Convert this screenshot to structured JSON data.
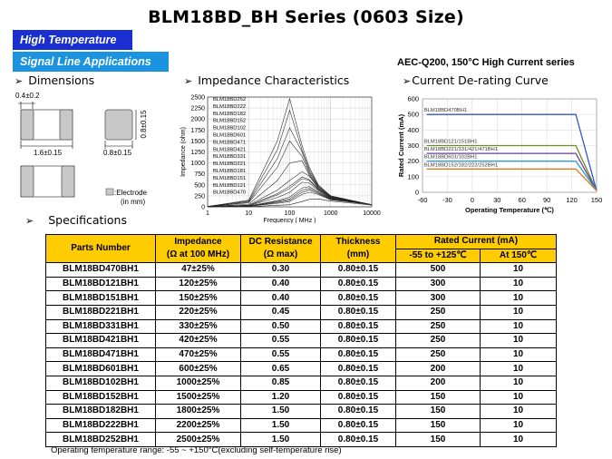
{
  "title": "BLM18BD_BH Series (0603 Size)",
  "tags": [
    "High Temperature",
    "Signal Line Applications"
  ],
  "aec_note": "AEC-Q200, 150°C High Current series",
  "sections": {
    "dimensions": "Dimensions",
    "impedance": "Impedance Characteristics",
    "derating": "Current De-rating Curve",
    "specifications": "Specifications"
  },
  "bullet": "➢",
  "dimensions": {
    "dim_a": "0.4±0.2",
    "dim_b": "1.6±0.15",
    "dim_c": "0.8±0.15",
    "dim_d": "0.8±0.15",
    "electrode_line1": ":Electrode",
    "electrode_line2": "(in mm)"
  },
  "chart_data": [
    {
      "type": "line",
      "title": "",
      "xlabel": "Frequency ( MHz )",
      "ylabel": "Impedance (ohm)",
      "xscale": "log",
      "xlim": [
        1,
        10000
      ],
      "ylim": [
        0,
        2500
      ],
      "xticks": [
        "1",
        "10",
        "100",
        "1000",
        "10000"
      ],
      "yticks": [
        "0",
        "250",
        "500",
        "750",
        "1000",
        "1250",
        "1500",
        "1750",
        "2000",
        "2250",
        "2500"
      ],
      "grid": true,
      "legend_position": "top-left",
      "series": [
        {
          "name": "BLM18BD252",
          "x": [
            1,
            10,
            50,
            100,
            200,
            300,
            500,
            1000,
            10000
          ],
          "y": [
            10,
            150,
            1500,
            2460,
            1400,
            900,
            500,
            250,
            50
          ]
        },
        {
          "name": "BLM18BD222",
          "x": [
            1,
            10,
            50,
            100,
            200,
            300,
            500,
            1000,
            10000
          ],
          "y": [
            10,
            130,
            1300,
            2200,
            1300,
            850,
            480,
            240,
            50
          ]
        },
        {
          "name": "BLM18BD182",
          "x": [
            1,
            10,
            50,
            100,
            200,
            300,
            500,
            1000,
            10000
          ],
          "y": [
            8,
            110,
            1100,
            1800,
            1250,
            800,
            460,
            240,
            50
          ]
        },
        {
          "name": "BLM18BD152",
          "x": [
            1,
            10,
            50,
            100,
            200,
            300,
            500,
            1000,
            10000
          ],
          "y": [
            8,
            90,
            900,
            1500,
            1150,
            760,
            440,
            230,
            50
          ]
        },
        {
          "name": "BLM18BD102",
          "x": [
            1,
            10,
            50,
            100,
            200,
            300,
            500,
            1000,
            10000
          ],
          "y": [
            6,
            60,
            600,
            1000,
            1050,
            720,
            420,
            220,
            50
          ]
        },
        {
          "name": "BLM18BD601",
          "x": [
            1,
            10,
            50,
            100,
            200,
            300,
            500,
            1000,
            10000
          ],
          "y": [
            5,
            40,
            380,
            600,
            800,
            700,
            420,
            220,
            50
          ]
        },
        {
          "name": "BLM18BD471",
          "x": [
            1,
            10,
            50,
            100,
            200,
            300,
            500,
            1000,
            10000
          ],
          "y": [
            4,
            30,
            300,
            470,
            680,
            620,
            400,
            210,
            50
          ]
        },
        {
          "name": "BLM18BD421",
          "x": [
            1,
            10,
            50,
            100,
            200,
            300,
            500,
            1000,
            10000
          ],
          "y": [
            4,
            28,
            270,
            420,
            640,
            600,
            390,
            210,
            50
          ]
        },
        {
          "name": "BLM18BD331",
          "x": [
            1,
            10,
            50,
            100,
            200,
            300,
            500,
            1000,
            10000
          ],
          "y": [
            3,
            22,
            210,
            330,
            560,
            540,
            370,
            200,
            50
          ]
        },
        {
          "name": "BLM18BD221",
          "x": [
            1,
            10,
            50,
            100,
            200,
            300,
            500,
            1000,
            10000
          ],
          "y": [
            3,
            16,
            140,
            220,
            430,
            460,
            340,
            190,
            50
          ]
        },
        {
          "name": "BLM18BD181",
          "x": [
            1,
            10,
            50,
            100,
            200,
            300,
            500,
            1000,
            10000
          ],
          "y": [
            2,
            14,
            120,
            180,
            380,
            420,
            320,
            180,
            50
          ]
        },
        {
          "name": "BLM18BD151",
          "x": [
            1,
            10,
            50,
            100,
            200,
            300,
            500,
            1000,
            10000
          ],
          "y": [
            2,
            12,
            100,
            150,
            330,
            380,
            300,
            170,
            50
          ]
        },
        {
          "name": "BLM18BD121",
          "x": [
            1,
            10,
            50,
            100,
            200,
            300,
            500,
            1000,
            10000
          ],
          "y": [
            2,
            10,
            80,
            120,
            280,
            330,
            280,
            160,
            50
          ]
        },
        {
          "name": "BLM18BD470",
          "x": [
            1,
            10,
            50,
            100,
            200,
            300,
            500,
            1000,
            10000
          ],
          "y": [
            1,
            5,
            35,
            47,
            120,
            170,
            180,
            130,
            40
          ]
        }
      ]
    },
    {
      "type": "line",
      "title": "",
      "xlabel": "Operating Temperature (℃)",
      "ylabel": "Rated Current (mA)",
      "xlim": [
        -60,
        150
      ],
      "ylim": [
        0,
        600
      ],
      "xticks": [
        "-60",
        "-30",
        "0",
        "30",
        "60",
        "90",
        "120",
        "150"
      ],
      "yticks": [
        "0",
        "100",
        "200",
        "300",
        "400",
        "500",
        "600"
      ],
      "grid": true,
      "series": [
        {
          "name": "BLM18BD470BH1",
          "color": "#3355cc",
          "x": [
            -55,
            125,
            150
          ],
          "y": [
            500,
            500,
            10
          ]
        },
        {
          "name": "BLM18BD121/151BH1",
          "color": "#6b8e23",
          "x": [
            -55,
            125,
            150
          ],
          "y": [
            300,
            300,
            10
          ]
        },
        {
          "name": "BLM18BD221/331/421/471BH1",
          "color": "#6a3d9a",
          "x": [
            -55,
            125,
            150
          ],
          "y": [
            250,
            250,
            10
          ]
        },
        {
          "name": "BLM18BD601/102BH1",
          "color": "#2a9fd6",
          "x": [
            -55,
            125,
            150
          ],
          "y": [
            200,
            200,
            10
          ]
        },
        {
          "name": "BLM18BD152/182/222/252BH1",
          "color": "#e07b1a",
          "x": [
            -55,
            125,
            150
          ],
          "y": [
            150,
            150,
            10
          ]
        }
      ]
    }
  ],
  "table": {
    "headers": {
      "part": "Parts Number",
      "imp1": "Impedance",
      "imp2": "(Ω at 100 MHz)",
      "dc1": "DC Resistance",
      "dc2": "(Ω max)",
      "thk1": "Thickness",
      "thk2": "(mm)",
      "rated": "Rated Current (mA)",
      "rated_a": "-55 to +125℃",
      "rated_b": "At 150℃"
    },
    "rows": [
      [
        "BLM18BD470BH1",
        "47±25%",
        "0.30",
        "0.80±0.15",
        "500",
        "10"
      ],
      [
        "BLM18BD121BH1",
        "120±25%",
        "0.40",
        "0.80±0.15",
        "300",
        "10"
      ],
      [
        "BLM18BD151BH1",
        "150±25%",
        "0.40",
        "0.80±0.15",
        "300",
        "10"
      ],
      [
        "BLM18BD221BH1",
        "220±25%",
        "0.45",
        "0.80±0.15",
        "250",
        "10"
      ],
      [
        "BLM18BD331BH1",
        "330±25%",
        "0.50",
        "0.80±0.15",
        "250",
        "10"
      ],
      [
        "BLM18BD421BH1",
        "420±25%",
        "0.55",
        "0.80±0.15",
        "250",
        "10"
      ],
      [
        "BLM18BD471BH1",
        "470±25%",
        "0.55",
        "0.80±0.15",
        "250",
        "10"
      ],
      [
        "BLM18BD601BH1",
        "600±25%",
        "0.65",
        "0.80±0.15",
        "200",
        "10"
      ],
      [
        "BLM18BD102BH1",
        "1000±25%",
        "0.85",
        "0.80±0.15",
        "200",
        "10"
      ],
      [
        "BLM18BD152BH1",
        "1500±25%",
        "1.20",
        "0.80±0.15",
        "150",
        "10"
      ],
      [
        "BLM18BD182BH1",
        "1800±25%",
        "1.50",
        "0.80±0.15",
        "150",
        "10"
      ],
      [
        "BLM18BD222BH1",
        "2200±25%",
        "1.50",
        "0.80±0.15",
        "150",
        "10"
      ],
      [
        "BLM18BD252BH1",
        "2500±25%",
        "1.50",
        "0.80±0.15",
        "150",
        "10"
      ]
    ]
  },
  "footnote": "Operating temperature range: -55 ~ +150°C(excluding self-temperature rise)",
  "colors": {
    "tag_dark": "#1a2fd0",
    "tag_light": "#1a93e0",
    "table_header": "#ffcc00"
  }
}
